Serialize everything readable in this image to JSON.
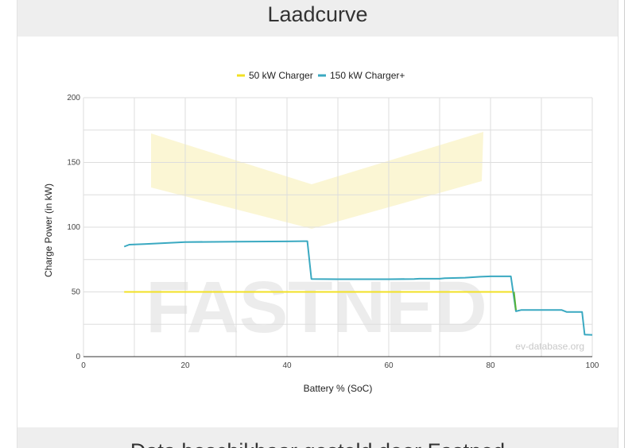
{
  "page": {
    "title": "Laadcurve",
    "footer_text": "Data beschikbaar gesteld door Fastned"
  },
  "watermarks": {
    "brand": "FASTNED",
    "source": "ev-database.org"
  },
  "colors": {
    "series_50": "#f2e024",
    "series_150": "#3aa9c1",
    "transition": "#56b33a",
    "grid": "#dddddd",
    "axis": "#333333",
    "watermark": "#f0e9a8"
  },
  "chart_data": {
    "type": "line",
    "xlabel": "Battery % (SoC)",
    "ylabel": "Charge Power (in kW)",
    "xlim": [
      0,
      100
    ],
    "ylim": [
      0,
      200
    ],
    "x_ticks": [
      0,
      20,
      40,
      60,
      80,
      100
    ],
    "y_ticks": [
      0,
      50,
      100,
      150,
      200
    ],
    "grid": true,
    "legend_position": "top",
    "series": [
      {
        "name": "50 kW Charger",
        "color": "#f2e024",
        "points": [
          [
            8,
            50
          ],
          [
            84.5,
            50
          ],
          [
            85,
            35
          ]
        ]
      },
      {
        "name": "150 kW Charger+",
        "color": "#3aa9c1",
        "points": [
          [
            8,
            85
          ],
          [
            9,
            86.5
          ],
          [
            12,
            87
          ],
          [
            20,
            88.5
          ],
          [
            30,
            88.8
          ],
          [
            40,
            89
          ],
          [
            44,
            89.2
          ],
          [
            44.8,
            60
          ],
          [
            50,
            59.8
          ],
          [
            55,
            59.8
          ],
          [
            60,
            59.8
          ],
          [
            65,
            60
          ],
          [
            66,
            60.2
          ],
          [
            70,
            60.2
          ],
          [
            71,
            60.6
          ],
          [
            75,
            61
          ],
          [
            78,
            61.7
          ],
          [
            80,
            62
          ],
          [
            84,
            62
          ],
          [
            85,
            35
          ],
          [
            86,
            36
          ],
          [
            90,
            36
          ],
          [
            94,
            36
          ],
          [
            95,
            34.5
          ],
          [
            98,
            34.5
          ],
          [
            98.5,
            17
          ],
          [
            100,
            16.8
          ]
        ]
      }
    ]
  }
}
